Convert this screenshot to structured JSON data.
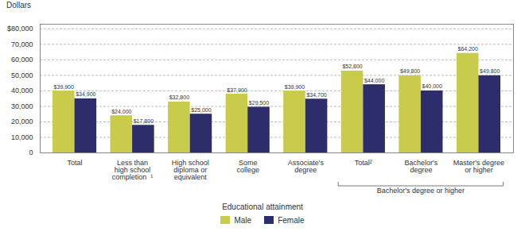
{
  "chart_data": {
    "type": "bar",
    "ylabel": "Dollars",
    "xlabel": "Educational attainment",
    "categories": [
      "Total",
      "Less than\nhigh school\ncompletion  ¹",
      "High school\ndiploma or\nequivalent",
      "Some\ncollege",
      "Associate's\ndegree",
      "Total²",
      "Bachelor's\ndegree",
      "Master's degree\nor higher"
    ],
    "series": [
      {
        "name": "Male",
        "color": "#c8cc4a",
        "values": [
          39900,
          24000,
          32800,
          37900,
          39900,
          52800,
          49800,
          64200
        ],
        "value_labels": [
          "$39,900",
          "$24,000",
          "$32,800",
          "$37,900",
          "$39,900",
          "$52,800",
          "$49,800",
          "$64,200"
        ]
      },
      {
        "name": "Female",
        "color": "#2e2d6b",
        "values": [
          34900,
          17800,
          25000,
          29500,
          34700,
          44000,
          40000,
          49800
        ],
        "value_labels": [
          "$34,900",
          "$17,800",
          "$25,000",
          "$29,500",
          "$34,700",
          "$44,000",
          "$40,000",
          "$49,800"
        ]
      }
    ],
    "ylim": [
      0,
      83000
    ],
    "yticks": [
      0,
      {
        "value": 10000,
        "label": "10,000"
      },
      {
        "value": 20000,
        "label": "20,000"
      },
      {
        "value": 30000,
        "label": "30,000"
      },
      {
        "value": 40000,
        "label": "40,000"
      },
      {
        "value": 50000,
        "label": "50,000"
      },
      {
        "value": 60000,
        "label": "60,000"
      },
      {
        "value": 70000,
        "label": "70,000"
      },
      {
        "value": 80000,
        "label": "$80,000"
      }
    ],
    "grid": true,
    "legend": "bottom",
    "data_labels": true,
    "annotations": [
      {
        "text": "Bachelor's degree or higher",
        "from": "Total²",
        "to": "Master's degree\nor higher"
      }
    ]
  }
}
